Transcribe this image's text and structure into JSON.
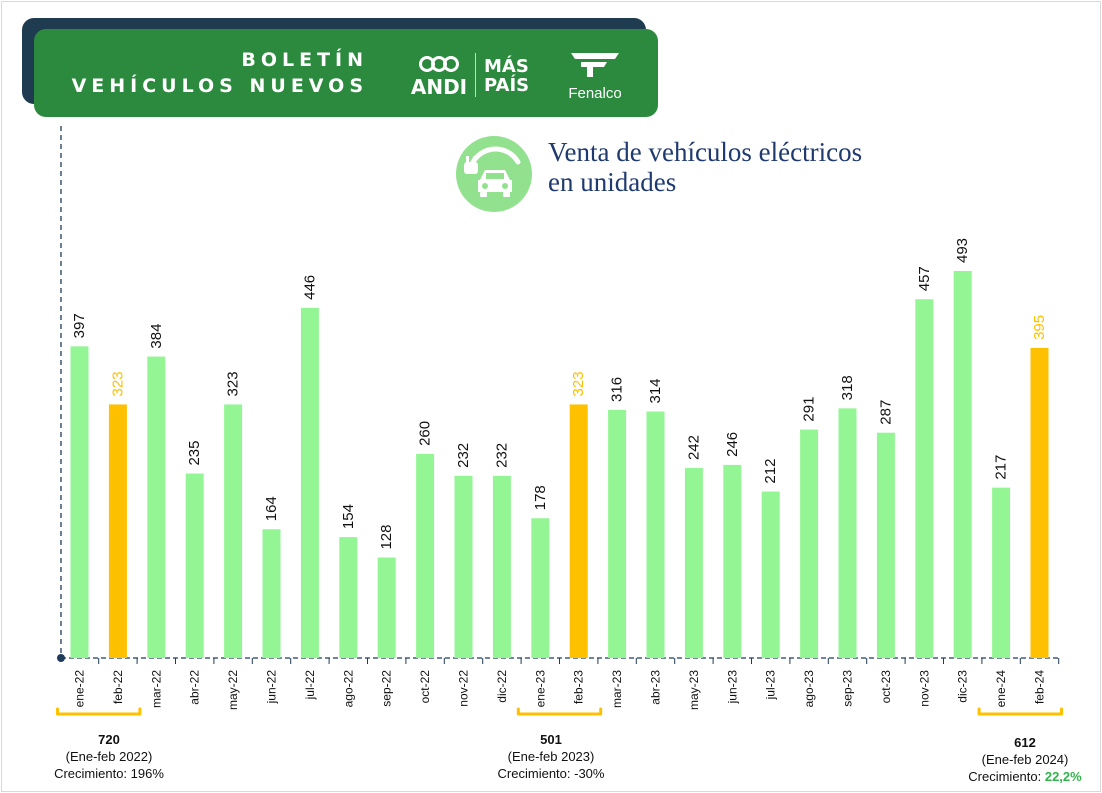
{
  "header": {
    "title_line1": "BOLETÍN",
    "title_line2": "VEHÍCULOS NUEVOS",
    "logos": {
      "andi": "ANDI",
      "mas_pais_line1": "MÁS",
      "mas_pais_line2": "PAÍS",
      "fenalco": "Fenalco"
    }
  },
  "chart_data": {
    "type": "bar",
    "title_line1": "Venta de vehículos eléctricos",
    "title_line2": "en unidades",
    "categories": [
      "ene-22",
      "feb-22",
      "mar-22",
      "abr-22",
      "may-22",
      "jun-22",
      "jul-22",
      "ago-22",
      "sep-22",
      "oct-22",
      "nov-22",
      "dic-22",
      "ene-23",
      "feb-23",
      "mar-23",
      "abr-23",
      "may-23",
      "jun-23",
      "jul-23",
      "ago-23",
      "sep-23",
      "oct-23",
      "nov-23",
      "dic-23",
      "ene-24",
      "feb-24"
    ],
    "values": [
      397,
      323,
      384,
      235,
      323,
      164,
      446,
      154,
      128,
      260,
      232,
      232,
      178,
      323,
      316,
      314,
      242,
      246,
      212,
      291,
      318,
      287,
      457,
      493,
      217,
      395
    ],
    "highlighted": [
      "feb-22",
      "feb-23",
      "feb-24"
    ],
    "colors": {
      "bar": "#93f593",
      "highlight": "#ffc000",
      "label": "#111111",
      "highlight_label": "#ffc000",
      "axis": "#1f3b5c",
      "bracket": "#ffc000"
    },
    "ylim": [
      0,
      560
    ],
    "grid": false,
    "legend": "none"
  },
  "summaries": [
    {
      "total": "720",
      "period": "(Ene-feb 2022)",
      "growth_label": "Crecimiento: ",
      "growth_value": "196%"
    },
    {
      "total": "501",
      "period": "(Ene-feb 2023)",
      "growth_label": "Crecimiento: ",
      "growth_value": "-30%"
    },
    {
      "total": "612",
      "period": "(Ene-feb 2024)",
      "growth_label": "Crecimiento: ",
      "growth_value": "22,2%"
    }
  ]
}
